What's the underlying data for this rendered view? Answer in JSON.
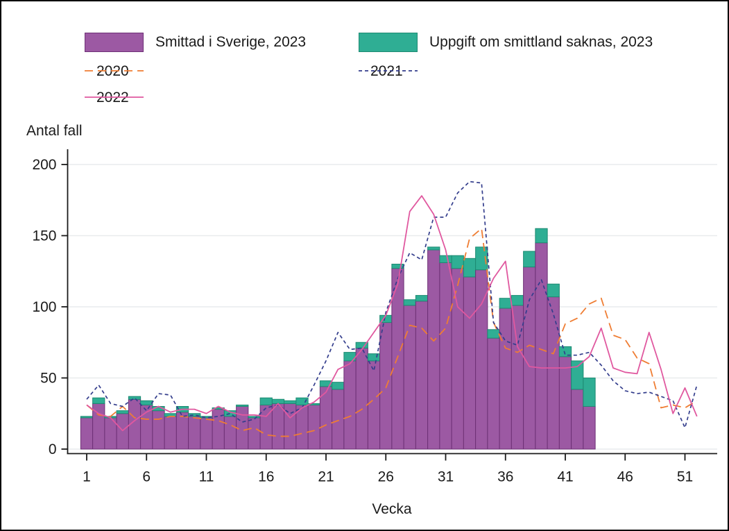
{
  "legend": {
    "items": [
      {
        "label": "Smittad i Sverige, 2023",
        "swatch": "box",
        "color": "#9c59a3",
        "border": "#6e3076"
      },
      {
        "label": "Uppgift om smittland saknas, 2023",
        "swatch": "box",
        "color": "#2fae94",
        "border": "#1d8a72"
      },
      {
        "label": "2020",
        "swatch": "line",
        "color": "#ef7d33",
        "dash": "12,7"
      },
      {
        "label": "2021",
        "swatch": "line",
        "color": "#333d8c",
        "dash": "5,4"
      },
      {
        "label": "2022",
        "swatch": "line",
        "color": "#e0589f",
        "dash": ""
      }
    ]
  },
  "axes": {
    "y_title": "Antal fall",
    "x_title": "Vecka"
  },
  "chart_data": {
    "type": "bar",
    "title": "",
    "ylabel": "Antal fall",
    "xlabel": "Vecka",
    "ylim": [
      0,
      200
    ],
    "yticks": [
      0,
      50,
      100,
      150,
      200
    ],
    "xticks": [
      1,
      6,
      11,
      16,
      21,
      26,
      31,
      36,
      41,
      46,
      51
    ],
    "grid": "horizontal",
    "legend_position": "top",
    "bar_weeks": [
      1,
      2,
      3,
      4,
      5,
      6,
      7,
      8,
      9,
      10,
      11,
      12,
      13,
      14,
      15,
      16,
      17,
      18,
      19,
      20,
      21,
      22,
      23,
      24,
      25,
      26,
      27,
      28,
      29,
      30,
      31,
      32,
      33,
      34,
      35,
      36,
      37,
      38,
      39,
      40,
      41,
      42,
      43
    ],
    "stacked_bar_series": [
      {
        "name": "Smittad i Sverige, 2023",
        "color": "#9c59a3",
        "stroke": "#6e3076",
        "values": [
          22,
          32,
          22,
          25,
          35,
          31,
          27,
          23,
          26,
          23,
          22,
          28,
          23,
          30,
          22,
          31,
          32,
          32,
          31,
          31,
          44,
          42,
          62,
          71,
          62,
          89,
          127,
          101,
          104,
          140,
          131,
          127,
          121,
          126,
          78,
          99,
          101,
          128,
          145,
          107,
          65,
          42,
          30
        ]
      },
      {
        "name": "Uppgift om smittland saknas, 2023",
        "color": "#2fae94",
        "stroke": "#1d8a72",
        "values": [
          1,
          4,
          1,
          2,
          2,
          3,
          3,
          2,
          4,
          2,
          1,
          1,
          4,
          1,
          1,
          5,
          3,
          2,
          5,
          1,
          4,
          5,
          6,
          4,
          5,
          5,
          3,
          4,
          4,
          2,
          5,
          9,
          13,
          16,
          6,
          7,
          7,
          11,
          10,
          9,
          7,
          20,
          20
        ]
      }
    ],
    "line_weeks_start": 1,
    "line_series": [
      {
        "name": "2020",
        "color": "#ef7d33",
        "dash": "12,7",
        "width": 1.8,
        "values": [
          31,
          24,
          23,
          30,
          22,
          21,
          21,
          23,
          23,
          22,
          21,
          20,
          17,
          13,
          15,
          10,
          9,
          9,
          11,
          13,
          17,
          20,
          23,
          28,
          35,
          43,
          65,
          87,
          85,
          76,
          85,
          115,
          148,
          155,
          89,
          71,
          68,
          73,
          70,
          67,
          88,
          92,
          102,
          106,
          80,
          77,
          64,
          60,
          29,
          31,
          29,
          34
        ]
      },
      {
        "name": "2021",
        "color": "#333d8c",
        "dash": "5,4",
        "width": 1.7,
        "values": [
          35,
          45,
          32,
          30,
          36,
          27,
          39,
          38,
          23,
          24,
          22,
          23,
          25,
          19,
          21,
          29,
          31,
          25,
          29,
          45,
          62,
          82,
          70,
          71,
          55,
          96,
          120,
          138,
          133,
          163,
          163,
          180,
          188,
          187,
          89,
          76,
          73,
          105,
          119,
          95,
          66,
          66,
          68,
          59,
          48,
          41,
          39,
          40,
          37,
          34,
          15,
          45
        ]
      },
      {
        "name": "2022",
        "color": "#e0589f",
        "dash": "",
        "width": 1.8,
        "values": [
          31,
          25,
          22,
          13,
          20,
          26,
          30,
          26,
          28,
          28,
          25,
          30,
          26,
          24,
          24,
          23,
          32,
          22,
          29,
          33,
          40,
          56,
          60,
          70,
          82,
          94,
          116,
          167,
          178,
          165,
          140,
          100,
          92,
          102,
          120,
          132,
          72,
          58,
          57,
          57,
          57,
          58,
          65,
          85,
          57,
          54,
          53,
          82,
          56,
          25,
          43,
          23
        ]
      }
    ]
  }
}
